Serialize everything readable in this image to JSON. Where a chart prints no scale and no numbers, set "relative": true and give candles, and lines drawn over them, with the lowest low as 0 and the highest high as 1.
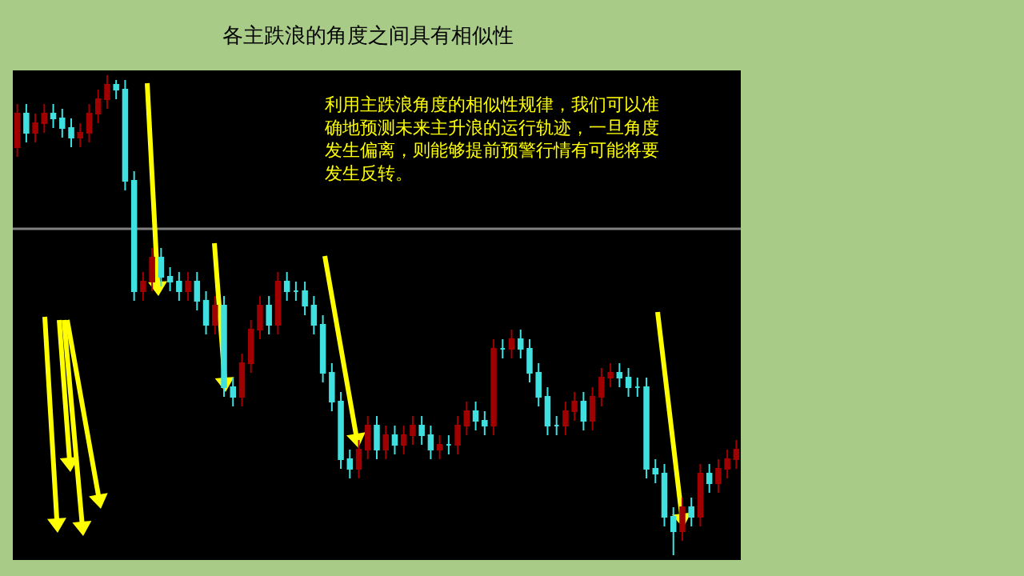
{
  "chart_data": {
    "type": "candlestick",
    "relative": true,
    "title": "各主跌浪的角度之间具有相似性",
    "annotations": [
      "利用主跌浪角度的相似性规律，我们可以准确地预测未来主升浪的运行轨迹，一旦角度发生偏离，则能够提前预警行情有可能将要发生反转。"
    ],
    "colors": [
      "#a00000",
      "#40e0e0",
      "#a00000",
      "#a00000",
      "#40e0e0",
      "#40e0e0",
      "#40e0e0",
      "#a00000",
      "#a00000",
      "#a00000",
      "#a00000",
      "#40e0e0",
      "#40e0e0",
      "#40e0e0",
      "#a00000",
      "#a00000",
      "#40e0e0",
      "#40e0e0",
      "#40e0e0",
      "#a00000",
      "#40e0e0",
      "#40e0e0",
      "#a00000",
      "#40e0e0",
      "#40e0e0",
      "#a00000",
      "#a00000",
      "#a00000",
      "#40e0e0",
      "#a00000",
      "#40e0e0",
      "#40e0e0",
      "#40e0e0",
      "#40e0e0",
      "#40e0e0",
      "#40e0e0",
      "#40e0e0",
      "#40e0e0",
      "#a00000",
      "#a00000",
      "#40e0e0",
      "#a00000",
      "#40e0e0",
      "#a00000",
      "#a00000",
      "#40e0e0",
      "#40e0e0",
      "#a00000",
      "#40e0e0",
      "#a00000",
      "#a00000",
      "#40e0e0",
      "#40e0e0",
      "#a00000",
      "#40e0e0",
      "#a00000",
      "#40e0e0",
      "#40e0e0",
      "#40e0e0",
      "#40e0e0",
      "#40e0e0",
      "#a00000",
      "#a00000",
      "#40e0e0",
      "#a00000",
      "#a00000",
      "#a00000",
      "#40e0e0",
      "#40e0e0",
      "#40e0e0",
      "#40e0e0",
      "#40e0e0",
      "#40e0e0",
      "#40e0e0",
      "#a00000",
      "#40e0e0",
      "#a00000",
      "#40e0e0",
      "#a00000",
      "#a00000",
      "#a00000"
    ],
    "ref_lines": [
      {
        "axis": "y",
        "value": 0.68,
        "color": "#808080"
      }
    ],
    "categories": [
      null,
      null,
      null,
      null,
      null,
      null,
      null,
      null,
      null,
      null,
      null,
      null,
      null,
      null,
      null,
      null,
      null,
      null,
      null,
      null,
      null,
      null,
      null,
      null,
      null,
      null,
      null,
      null,
      null,
      null,
      null,
      null,
      null,
      null,
      null,
      null,
      null,
      null,
      null,
      null,
      null,
      null,
      null,
      null,
      null,
      null,
      null,
      null,
      null,
      null,
      null,
      null,
      null,
      null,
      null,
      null,
      null,
      null,
      null,
      null,
      null,
      null,
      null,
      null,
      null,
      null,
      null,
      null,
      null,
      null,
      null,
      null,
      null,
      null,
      null,
      null,
      null,
      null,
      null,
      null,
      null
    ],
    "ohlc": [
      [
        0.85,
        0.94,
        0.83,
        0.92
      ],
      [
        0.92,
        0.94,
        0.86,
        0.88
      ],
      [
        0.88,
        0.92,
        0.86,
        0.9
      ],
      [
        0.9,
        0.94,
        0.88,
        0.92
      ],
      [
        0.92,
        0.94,
        0.89,
        0.91
      ],
      [
        0.91,
        0.93,
        0.87,
        0.89
      ],
      [
        0.89,
        0.91,
        0.85,
        0.87
      ],
      [
        0.87,
        0.9,
        0.85,
        0.88
      ],
      [
        0.88,
        0.94,
        0.86,
        0.92
      ],
      [
        0.92,
        0.97,
        0.9,
        0.95
      ],
      [
        0.95,
        1.0,
        0.93,
        0.98
      ],
      [
        0.98,
        0.99,
        0.95,
        0.97
      ],
      [
        0.97,
        0.99,
        0.76,
        0.78
      ],
      [
        0.78,
        0.8,
        0.53,
        0.55
      ],
      [
        0.55,
        0.59,
        0.53,
        0.57
      ],
      [
        0.57,
        0.64,
        0.55,
        0.62
      ],
      [
        0.62,
        0.64,
        0.56,
        0.58
      ],
      [
        0.58,
        0.6,
        0.55,
        0.57
      ],
      [
        0.57,
        0.59,
        0.53,
        0.55
      ],
      [
        0.55,
        0.59,
        0.53,
        0.57
      ],
      [
        0.57,
        0.59,
        0.51,
        0.53
      ],
      [
        0.53,
        0.55,
        0.46,
        0.48
      ],
      [
        0.48,
        0.54,
        0.46,
        0.52
      ],
      [
        0.52,
        0.54,
        0.33,
        0.35
      ],
      [
        0.35,
        0.37,
        0.31,
        0.33
      ],
      [
        0.33,
        0.42,
        0.31,
        0.4
      ],
      [
        0.4,
        0.49,
        0.38,
        0.47
      ],
      [
        0.47,
        0.54,
        0.45,
        0.52
      ],
      [
        0.52,
        0.54,
        0.46,
        0.48
      ],
      [
        0.48,
        0.59,
        0.46,
        0.57
      ],
      [
        0.57,
        0.59,
        0.53,
        0.55
      ],
      [
        0.55,
        0.57,
        0.53,
        0.55
      ],
      [
        0.55,
        0.57,
        0.5,
        0.52
      ],
      [
        0.52,
        0.54,
        0.46,
        0.48
      ],
      [
        0.48,
        0.5,
        0.36,
        0.38
      ],
      [
        0.38,
        0.4,
        0.3,
        0.32
      ],
      [
        0.32,
        0.34,
        0.18,
        0.2
      ],
      [
        0.2,
        0.22,
        0.16,
        0.18
      ],
      [
        0.18,
        0.24,
        0.16,
        0.22
      ],
      [
        0.22,
        0.29,
        0.2,
        0.27
      ],
      [
        0.27,
        0.29,
        0.2,
        0.22
      ],
      [
        0.22,
        0.27,
        0.2,
        0.25
      ],
      [
        0.25,
        0.27,
        0.21,
        0.23
      ],
      [
        0.23,
        0.27,
        0.21,
        0.25
      ],
      [
        0.25,
        0.29,
        0.23,
        0.27
      ],
      [
        0.27,
        0.29,
        0.23,
        0.25
      ],
      [
        0.25,
        0.27,
        0.2,
        0.22
      ],
      [
        0.22,
        0.25,
        0.2,
        0.23
      ],
      [
        0.23,
        0.25,
        0.21,
        0.23
      ],
      [
        0.23,
        0.29,
        0.21,
        0.27
      ],
      [
        0.27,
        0.32,
        0.25,
        0.3
      ],
      [
        0.3,
        0.32,
        0.26,
        0.28
      ],
      [
        0.28,
        0.3,
        0.25,
        0.27
      ],
      [
        0.27,
        0.45,
        0.25,
        0.43
      ],
      [
        0.43,
        0.45,
        0.41,
        0.43
      ],
      [
        0.43,
        0.47,
        0.41,
        0.45
      ],
      [
        0.45,
        0.47,
        0.41,
        0.43
      ],
      [
        0.43,
        0.45,
        0.36,
        0.38
      ],
      [
        0.38,
        0.4,
        0.31,
        0.33
      ],
      [
        0.33,
        0.35,
        0.25,
        0.27
      ],
      [
        0.27,
        0.29,
        0.25,
        0.27
      ],
      [
        0.27,
        0.32,
        0.25,
        0.3
      ],
      [
        0.3,
        0.34,
        0.28,
        0.32
      ],
      [
        0.32,
        0.34,
        0.26,
        0.28
      ],
      [
        0.28,
        0.35,
        0.26,
        0.33
      ],
      [
        0.33,
        0.39,
        0.31,
        0.37
      ],
      [
        0.37,
        0.4,
        0.35,
        0.38
      ],
      [
        0.38,
        0.4,
        0.35,
        0.37
      ],
      [
        0.37,
        0.39,
        0.33,
        0.35
      ],
      [
        0.35,
        0.37,
        0.33,
        0.35
      ],
      [
        0.35,
        0.37,
        0.16,
        0.18
      ],
      [
        0.18,
        0.2,
        0.15,
        0.17
      ],
      [
        0.17,
        0.19,
        0.06,
        0.08
      ],
      [
        0.08,
        0.1,
        0.0,
        0.05
      ],
      [
        0.05,
        0.12,
        0.03,
        0.1
      ],
      [
        0.1,
        0.12,
        0.06,
        0.08
      ],
      [
        0.08,
        0.19,
        0.06,
        0.17
      ],
      [
        0.17,
        0.19,
        0.13,
        0.15
      ],
      [
        0.15,
        0.2,
        0.13,
        0.18
      ],
      [
        0.18,
        0.22,
        0.16,
        0.2
      ],
      [
        0.2,
        0.24,
        0.18,
        0.22
      ]
    ]
  }
}
